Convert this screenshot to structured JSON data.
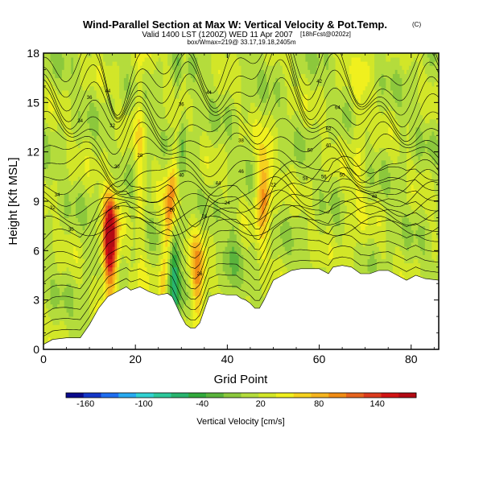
{
  "chart_data": {
    "type": "heatmap",
    "title": "Wind-Parallel Section at Max W: Vertical Velocity & Pot.Temp.",
    "title_mark": "(C)",
    "subtitle": "Valid 1400 LST (1200Z) WED 11 Apr 2007",
    "subtitle_note": "[18hFcst@0202z]",
    "subtitle2": "box/Wmax=219@ 33.17,19.18,2405m",
    "xlabel": "Grid Point",
    "ylabel": "Height [Kft MSL]",
    "xlim": [
      0,
      86
    ],
    "ylim": [
      0,
      18
    ],
    "x_ticks": [
      "0",
      "20",
      "40",
      "60",
      "80"
    ],
    "y_ticks": [
      "0",
      "3",
      "6",
      "9",
      "12",
      "15",
      "18"
    ],
    "colorbar": {
      "label": "Vertical Velocity [cm/s]",
      "tick_labels": [
        "-160",
        "-100",
        "-40",
        "20",
        "80",
        "140"
      ],
      "tick_values": [
        -160,
        -100,
        -40,
        20,
        80,
        140
      ],
      "range": [
        -180,
        180
      ],
      "colors": [
        "#0a0a8c",
        "#1437c8",
        "#1e6ef0",
        "#28aaf0",
        "#32d2d2",
        "#2dc89b",
        "#28b46e",
        "#32aa3c",
        "#5ab43c",
        "#8cc83c",
        "#b4dc3c",
        "#d2e628",
        "#f0f01e",
        "#f5d21e",
        "#f5b41e",
        "#f08c14",
        "#e6641e",
        "#dc3c1e",
        "#d21414",
        "#b40a14"
      ]
    },
    "terrain_profile": [
      [
        0,
        0.3
      ],
      [
        2,
        0.6
      ],
      [
        5,
        0.7
      ],
      [
        8,
        0.7
      ],
      [
        10,
        1.5
      ],
      [
        12,
        2.5
      ],
      [
        14,
        3.2
      ],
      [
        16,
        3.5
      ],
      [
        18,
        3.8
      ],
      [
        19,
        3.6
      ],
      [
        21,
        3.8
      ],
      [
        23,
        3.5
      ],
      [
        25,
        3.3
      ],
      [
        27,
        3.4
      ],
      [
        28,
        3.2
      ],
      [
        29,
        2.6
      ],
      [
        30,
        2.0
      ],
      [
        31,
        1.5
      ],
      [
        32,
        1.3
      ],
      [
        33,
        1.3
      ],
      [
        34,
        1.6
      ],
      [
        35,
        2.4
      ],
      [
        36,
        3.2
      ],
      [
        38,
        3.4
      ],
      [
        40,
        3.3
      ],
      [
        42,
        3.3
      ],
      [
        43,
        3.1
      ],
      [
        44,
        3.0
      ],
      [
        45,
        2.8
      ],
      [
        46,
        2.5
      ],
      [
        47,
        2.5
      ],
      [
        48,
        3.0
      ],
      [
        49,
        3.6
      ],
      [
        50,
        4.2
      ],
      [
        52,
        4.5
      ],
      [
        54,
        4.8
      ],
      [
        56,
        4.9
      ],
      [
        58,
        4.9
      ],
      [
        60,
        4.9
      ],
      [
        62,
        4.6
      ],
      [
        63,
        5.0
      ],
      [
        65,
        5.1
      ],
      [
        67,
        5.0
      ],
      [
        69,
        4.6
      ],
      [
        71,
        4.6
      ],
      [
        73,
        4.8
      ],
      [
        75,
        4.8
      ],
      [
        77,
        4.5
      ],
      [
        79,
        4.2
      ],
      [
        81,
        4.5
      ],
      [
        83,
        4.3
      ],
      [
        86,
        4.2
      ]
    ],
    "updraft_cores": [
      {
        "x": 14.5,
        "z": 6.5,
        "w": 190
      },
      {
        "x": 48.0,
        "z": 9.5,
        "w": 90
      },
      {
        "x": 33.5,
        "z": 4.2,
        "w": 80
      },
      {
        "x": 27.5,
        "z": 8.0,
        "w": 60
      }
    ],
    "downdraft_cores": [
      {
        "x": 28.5,
        "z": 4.5,
        "w": -80
      },
      {
        "x": 30.0,
        "z": 15.0,
        "w": -40
      },
      {
        "x": 41.0,
        "z": 6.0,
        "w": -25
      }
    ],
    "theta_contour_labels": [
      "44",
      "44",
      "42",
      "36",
      "38",
      "40",
      "34",
      "32",
      "30",
      "28",
      "26",
      "24",
      "64",
      "62",
      "60",
      "58",
      "56",
      "50",
      "48",
      "46",
      "44",
      "40",
      "36",
      "34",
      "32",
      "30",
      "28",
      "26",
      "24",
      "22"
    ]
  }
}
